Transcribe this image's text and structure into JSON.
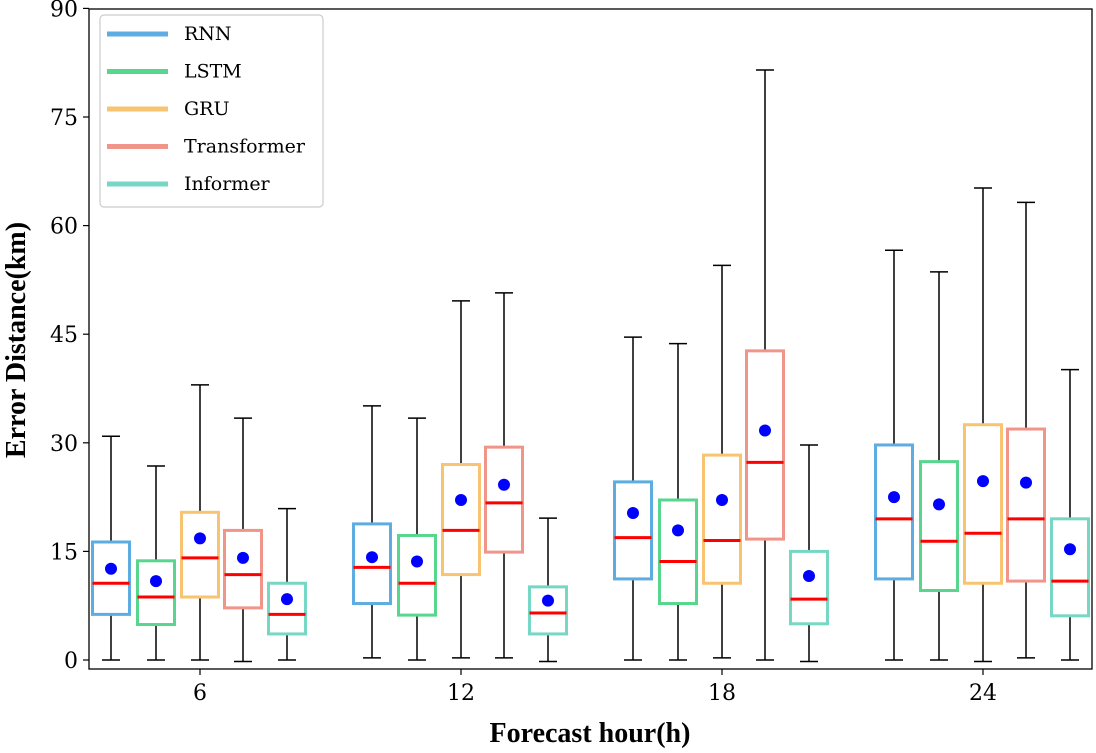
{
  "chart_data": {
    "type": "box",
    "xlabel": "Forecast hour(h)",
    "ylabel": "Error Distance(km)",
    "ylim": [
      -1,
      90
    ],
    "yticks": [
      0,
      15,
      30,
      45,
      60,
      75,
      90
    ],
    "categories": [
      "6",
      "12",
      "18",
      "24"
    ],
    "legend": {
      "position": "top-left"
    },
    "series": [
      {
        "name": "RNN",
        "color": "#5dade2",
        "stats": [
          {
            "whislo": 0.0,
            "q1": 6.3,
            "med": 10.6,
            "q3": 16.3,
            "whishi": 30.9,
            "mean": 12.6
          },
          {
            "whislo": 0.3,
            "q1": 7.8,
            "med": 12.8,
            "q3": 18.8,
            "whishi": 35.1,
            "mean": 14.2
          },
          {
            "whislo": 0.0,
            "q1": 11.2,
            "med": 16.9,
            "q3": 24.6,
            "whishi": 44.6,
            "mean": 20.3
          },
          {
            "whislo": 0.0,
            "q1": 11.2,
            "med": 19.5,
            "q3": 29.7,
            "whishi": 56.6,
            "mean": 22.5
          }
        ]
      },
      {
        "name": "LSTM",
        "color": "#58d68d",
        "stats": [
          {
            "whislo": 0.0,
            "q1": 4.9,
            "med": 8.7,
            "q3": 13.7,
            "whishi": 26.8,
            "mean": 10.9
          },
          {
            "whislo": 0.0,
            "q1": 6.2,
            "med": 10.6,
            "q3": 17.2,
            "whishi": 33.4,
            "mean": 13.6
          },
          {
            "whislo": 0.0,
            "q1": 7.8,
            "med": 13.6,
            "q3": 22.1,
            "whishi": 43.7,
            "mean": 17.9
          },
          {
            "whislo": 0.0,
            "q1": 9.6,
            "med": 16.4,
            "q3": 27.4,
            "whishi": 53.6,
            "mean": 21.5
          }
        ]
      },
      {
        "name": "GRU",
        "color": "#f8c471",
        "stats": [
          {
            "whislo": 0.0,
            "q1": 8.7,
            "med": 14.1,
            "q3": 20.4,
            "whishi": 38.0,
            "mean": 16.8
          },
          {
            "whislo": 0.3,
            "q1": 11.8,
            "med": 17.9,
            "q3": 27.0,
            "whishi": 49.6,
            "mean": 22.1
          },
          {
            "whislo": 0.3,
            "q1": 10.6,
            "med": 16.5,
            "q3": 28.3,
            "whishi": 54.5,
            "mean": 22.1
          },
          {
            "whislo": -0.2,
            "q1": 10.6,
            "med": 17.5,
            "q3": 32.5,
            "whishi": 65.2,
            "mean": 24.7
          }
        ]
      },
      {
        "name": "Transformer",
        "color": "#f1948a",
        "stats": [
          {
            "whislo": -0.2,
            "q1": 7.2,
            "med": 11.8,
            "q3": 17.9,
            "whishi": 33.4,
            "mean": 14.1
          },
          {
            "whislo": 0.3,
            "q1": 14.9,
            "med": 21.7,
            "q3": 29.4,
            "whishi": 50.7,
            "mean": 24.2
          },
          {
            "whislo": 0.0,
            "q1": 16.7,
            "med": 27.3,
            "q3": 42.7,
            "whishi": 81.5,
            "mean": 31.7
          },
          {
            "whislo": 0.3,
            "q1": 10.9,
            "med": 19.5,
            "q3": 31.9,
            "whishi": 63.2,
            "mean": 24.5
          }
        ]
      },
      {
        "name": "Informer",
        "color": "#76d7c4",
        "stats": [
          {
            "whislo": 0.0,
            "q1": 3.6,
            "med": 6.3,
            "q3": 10.6,
            "whishi": 20.9,
            "mean": 8.4
          },
          {
            "whislo": -0.2,
            "q1": 3.6,
            "med": 6.5,
            "q3": 10.1,
            "whishi": 19.6,
            "mean": 8.2
          },
          {
            "whislo": -0.2,
            "q1": 5.0,
            "med": 8.4,
            "q3": 15.0,
            "whishi": 29.7,
            "mean": 11.6
          },
          {
            "whislo": 0.0,
            "q1": 6.1,
            "med": 10.9,
            "q3": 19.5,
            "whishi": 40.1,
            "mean": 15.3
          }
        ]
      }
    ],
    "median_color": "#ff0000",
    "mean_color": "#0000ff"
  }
}
